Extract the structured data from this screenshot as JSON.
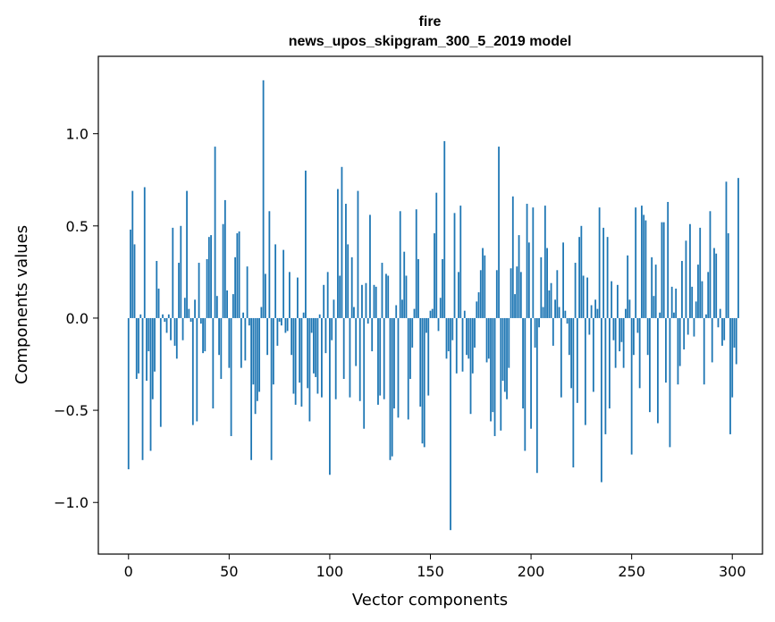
{
  "chart_data": {
    "type": "bar",
    "title": "fire",
    "subtitle": "news_upos_skipgram_300_5_2019 model",
    "xlabel": "Vector components",
    "ylabel": "Components values",
    "xlim": [
      -15,
      315
    ],
    "ylim": [
      -1.28,
      1.42
    ],
    "xticks": [
      0,
      50,
      100,
      150,
      200,
      250,
      300
    ],
    "xtick_labels": [
      "0",
      "50",
      "100",
      "150",
      "200",
      "250",
      "300"
    ],
    "yticks": [
      -1.0,
      -0.5,
      0.0,
      0.5,
      1.0
    ],
    "ytick_labels": [
      "−1.0",
      "−0.5",
      "0.0",
      "0.5",
      "1.0"
    ],
    "grid": false,
    "legend": "none",
    "bar_color": "#1f77b4",
    "series": [
      {
        "values": [
          -0.82,
          0.48,
          0.69,
          0.4,
          -0.33,
          -0.3,
          0.02,
          -0.77,
          0.71,
          -0.34,
          -0.18,
          -0.72,
          -0.44,
          -0.29,
          0.31,
          0.16,
          -0.59,
          0.02,
          -0.02,
          -0.08,
          0.02,
          -0.12,
          0.49,
          -0.15,
          -0.22,
          0.3,
          0.5,
          -0.12,
          0.11,
          0.69,
          0.05,
          -0.02,
          -0.58,
          0.1,
          -0.56,
          0.3,
          -0.03,
          -0.19,
          -0.18,
          0.32,
          0.44,
          0.45,
          -0.49,
          0.93,
          0.12,
          -0.2,
          -0.33,
          0.51,
          0.64,
          0.15,
          -0.27,
          -0.64,
          0.13,
          0.33,
          0.46,
          0.47,
          -0.27,
          0.03,
          -0.23,
          0.28,
          -0.04,
          -0.77,
          -0.36,
          -0.52,
          -0.45,
          -0.4,
          0.06,
          1.29,
          0.24,
          -0.2,
          0.58,
          -0.77,
          -0.36,
          0.4,
          -0.15,
          -0.02,
          -0.04,
          0.37,
          -0.08,
          -0.07,
          0.25,
          -0.2,
          -0.41,
          -0.47,
          0.22,
          -0.35,
          -0.48,
          0.03,
          0.8,
          -0.38,
          -0.56,
          -0.08,
          -0.3,
          -0.32,
          -0.41,
          0.02,
          -0.43,
          0.18,
          -0.19,
          0.25,
          -0.85,
          -0.12,
          0.1,
          -0.44,
          0.7,
          0.23,
          0.82,
          -0.33,
          0.62,
          0.4,
          -0.43,
          0.33,
          0.06,
          -0.26,
          0.69,
          -0.45,
          0.18,
          -0.6,
          0.19,
          -0.03,
          0.56,
          -0.18,
          0.18,
          0.17,
          -0.47,
          -0.42,
          0.3,
          -0.44,
          0.24,
          0.23,
          -0.77,
          -0.75,
          -0.49,
          0.07,
          -0.54,
          0.58,
          0.1,
          0.36,
          0.23,
          -0.55,
          -0.33,
          -0.16,
          0.05,
          0.59,
          0.32,
          -0.48,
          -0.68,
          -0.7,
          -0.08,
          -0.42,
          0.04,
          0.05,
          0.46,
          0.68,
          -0.07,
          0.11,
          0.32,
          0.96,
          -0.22,
          -0.18,
          -1.15,
          -0.12,
          0.57,
          -0.3,
          0.25,
          0.61,
          -0.29,
          0.04,
          -0.2,
          -0.22,
          -0.52,
          -0.3,
          -0.16,
          0.09,
          0.14,
          0.26,
          0.38,
          0.34,
          -0.24,
          -0.22,
          -0.56,
          -0.51,
          -0.64,
          0.26,
          0.93,
          -0.61,
          -0.34,
          -0.4,
          -0.44,
          -0.27,
          0.27,
          0.66,
          0.13,
          0.28,
          0.45,
          0.25,
          -0.49,
          -0.72,
          0.62,
          0.41,
          -0.6,
          0.6,
          -0.16,
          -0.84,
          -0.05,
          0.33,
          0.06,
          0.61,
          0.38,
          0.15,
          0.19,
          -0.15,
          0.1,
          0.26,
          0.06,
          -0.43,
          0.41,
          0.04,
          -0.03,
          -0.2,
          -0.38,
          -0.81,
          0.3,
          -0.46,
          0.44,
          0.5,
          0.23,
          -0.58,
          0.22,
          -0.09,
          0.07,
          -0.4,
          0.1,
          0.05,
          0.6,
          -0.89,
          0.49,
          -0.63,
          0.44,
          -0.49,
          0.2,
          -0.12,
          -0.27,
          0.18,
          -0.18,
          -0.13,
          -0.27,
          0.05,
          0.34,
          0.1,
          -0.74,
          -0.2,
          0.6,
          -0.08,
          -0.38,
          0.61,
          0.56,
          0.53,
          -0.2,
          -0.51,
          0.33,
          0.12,
          0.29,
          -0.57,
          0.03,
          0.52,
          0.52,
          -0.35,
          0.63,
          -0.7,
          0.17,
          0.03,
          0.16,
          -0.36,
          -0.26,
          0.31,
          -0.17,
          0.42,
          -0.09,
          0.51,
          0.17,
          -0.1,
          0.09,
          0.29,
          0.49,
          0.2,
          -0.36,
          0.02,
          0.25,
          0.58,
          -0.24,
          0.38,
          0.35,
          -0.05,
          0.05,
          -0.15,
          -0.12,
          0.74,
          0.46,
          -0.63,
          -0.43,
          -0.16,
          -0.25,
          0.76
        ]
      }
    ]
  }
}
